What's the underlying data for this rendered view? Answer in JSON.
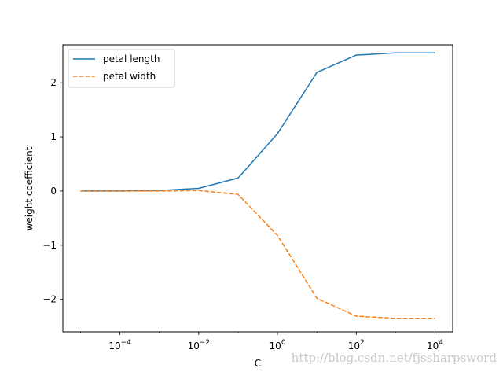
{
  "chart_data": {
    "type": "line",
    "title": "",
    "xlabel": "C",
    "ylabel": "weight coefficient",
    "xscale": "log",
    "xlim": [
      1e-05,
      10000
    ],
    "ylim": [
      -2.6,
      2.7
    ],
    "x_ticks": [
      {
        "value": 0.0001,
        "base": "10",
        "exp": "−4"
      },
      {
        "value": 0.01,
        "base": "10",
        "exp": "−2"
      },
      {
        "value": 1,
        "base": "10",
        "exp": "0"
      },
      {
        "value": 100,
        "base": "10",
        "exp": "2"
      },
      {
        "value": 10000,
        "base": "10",
        "exp": "4"
      }
    ],
    "y_ticks": [
      {
        "value": -2,
        "label": "−2"
      },
      {
        "value": -1,
        "label": "−1"
      },
      {
        "value": 0,
        "label": "0"
      },
      {
        "value": 1,
        "label": "1"
      },
      {
        "value": 2,
        "label": "2"
      }
    ],
    "x": [
      1e-05,
      0.0001,
      0.001,
      0.01,
      0.1,
      1,
      10,
      100,
      1000,
      10000
    ],
    "series": [
      {
        "name": "petal length",
        "color": "#1f77b4",
        "style": "solid",
        "values": [
          0.0,
          0.0,
          0.01,
          0.05,
          0.24,
          1.06,
          2.19,
          2.51,
          2.55,
          2.55
        ]
      },
      {
        "name": "petal width",
        "color": "#ff7f0e",
        "style": "dashed",
        "values": [
          0.0,
          0.0,
          0.0,
          0.01,
          -0.06,
          -0.82,
          -1.98,
          -2.31,
          -2.35,
          -2.35
        ]
      }
    ],
    "legend_position": "top-left",
    "grid": false
  },
  "watermark": "http://blog.csdn.net/fjssharpsword"
}
